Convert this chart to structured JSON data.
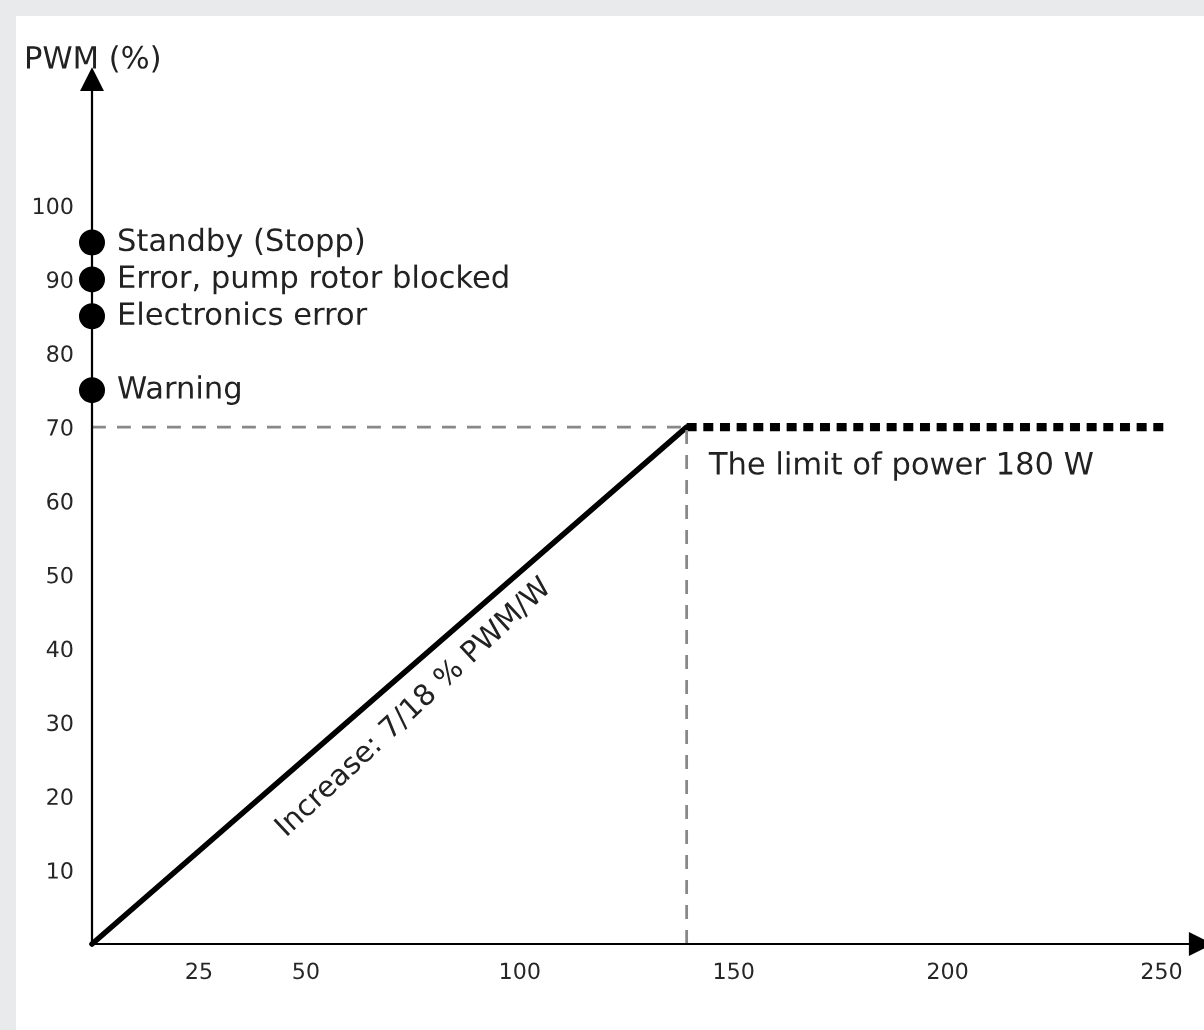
{
  "chart_data": {
    "type": "line",
    "ylabel": "PWM (%)",
    "series": [
      {
        "color": "#000000",
        "x": [
          0,
          139
        ],
        "values": [
          0,
          70
        ],
        "line_style": "solid"
      },
      {
        "color": "#000000",
        "x": [
          139,
          251
        ],
        "values": [
          70,
          70
        ],
        "line_style": "dotted"
      },
      {
        "type": "scatter",
        "color": "#000000",
        "x": [
          0,
          0,
          0,
          0
        ],
        "values": [
          95,
          90,
          85,
          75
        ],
        "marker": "circle"
      }
    ],
    "ref_lines": [
      {
        "axis": "y",
        "value": 70,
        "color": "#888888",
        "line_style": "dashed"
      },
      {
        "axis": "x",
        "value": 139,
        "color": "#888888",
        "line_style": "dashed"
      }
    ],
    "annotations": [
      {
        "text": "Standby (Stopp)",
        "x": 0,
        "y": 95
      },
      {
        "text": "Error, pump rotor blocked",
        "x": 0,
        "y": 90
      },
      {
        "text": "Electronics error",
        "x": 0,
        "y": 85
      },
      {
        "text": "Warning",
        "x": 0,
        "y": 75
      },
      {
        "text": "The limit of power 180 W",
        "x": 139,
        "y": 70
      },
      {
        "text": "Increase: 7/18 % PWM/W",
        "x": 70,
        "y": 35
      }
    ],
    "xlim": [
      0,
      259
    ],
    "ylim": [
      0,
      117
    ],
    "xticks": [
      25,
      50,
      100,
      150,
      200,
      250
    ],
    "yticks": [
      10,
      20,
      30,
      40,
      50,
      60,
      70,
      80,
      90,
      100
    ],
    "grid": false
  }
}
